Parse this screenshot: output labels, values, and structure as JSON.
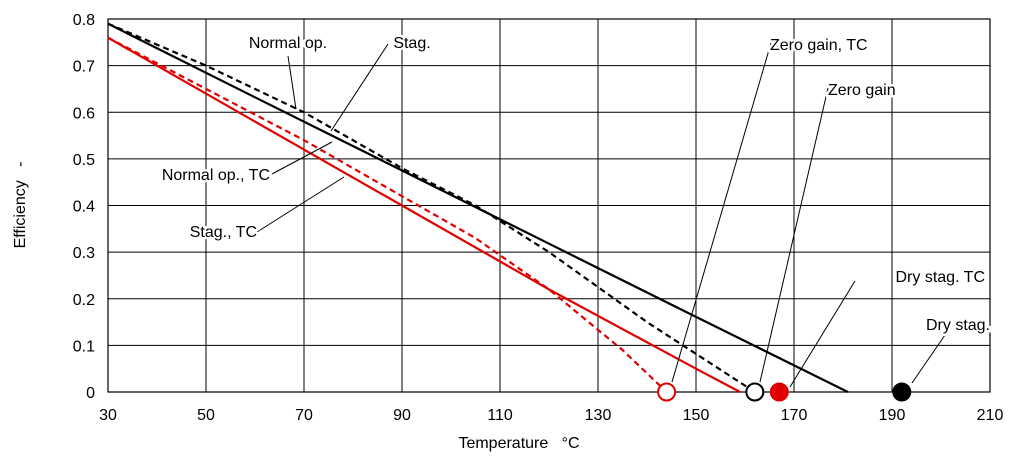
{
  "chart_data": {
    "type": "line",
    "title": "",
    "xlabel": "Temperature   °C",
    "ylabel": "Efficiency   -",
    "xlim": [
      30,
      210
    ],
    "ylim": [
      0,
      0.8
    ],
    "xticks": [
      30,
      50,
      70,
      90,
      110,
      130,
      150,
      170,
      190,
      210
    ],
    "yticks": [
      0,
      0.1,
      0.2,
      0.3,
      0.4,
      0.5,
      0.6,
      0.7,
      0.8
    ],
    "ytick_labels": [
      "0",
      "0.1",
      "0.2",
      "0.3",
      "0.4",
      "0.5",
      "0.6",
      "0.7",
      "0.8"
    ],
    "grid": true,
    "series": [
      {
        "name": "Normal op.",
        "color": "#000000",
        "dash": "solid",
        "x": [
          30,
          60,
          90,
          120,
          150,
          181
        ],
        "y": [
          0.79,
          0.632,
          0.475,
          0.318,
          0.161,
          0
        ]
      },
      {
        "name": "Stag.",
        "color": "#000000",
        "dash": "dashed",
        "x": [
          30,
          50,
          70,
          90,
          105,
          120,
          140,
          162
        ],
        "y": [
          0.79,
          0.7,
          0.6,
          0.48,
          0.4,
          0.3,
          0.15,
          0
        ]
      },
      {
        "name": "Normal op., TC",
        "color": "#e00000",
        "dash": "solid",
        "x": [
          30,
          60,
          90,
          120,
          150,
          159
        ],
        "y": [
          0.76,
          0.58,
          0.4,
          0.22,
          0.05,
          0
        ]
      },
      {
        "name": "Stag., TC",
        "color": "#e00000",
        "dash": "dashed",
        "x": [
          30,
          50,
          70,
          90,
          105,
          120,
          135,
          144
        ],
        "y": [
          0.76,
          0.65,
          0.54,
          0.42,
          0.33,
          0.22,
          0.09,
          0
        ]
      }
    ],
    "points": [
      {
        "name": "Zero gain, TC",
        "x": 144,
        "y": 0,
        "color": "#e00000",
        "filled": false
      },
      {
        "name": "Zero gain",
        "x": 162,
        "y": 0,
        "color": "#000000",
        "filled": false
      },
      {
        "name": "Dry stag. TC",
        "x": 167,
        "y": 0,
        "color": "#e00000",
        "filled": true
      },
      {
        "name": "Dry stag.",
        "x": 192,
        "y": 0,
        "color": "#000000",
        "filled": true
      }
    ],
    "annotations": [
      {
        "text": "Normal op.",
        "x": 69,
        "y": 0.604
      },
      {
        "text": "Stag.",
        "x": 72,
        "y": 0.555
      },
      {
        "text": "Normal op., TC",
        "x": 79,
        "y": 0.535
      },
      {
        "text": "Stag., TC",
        "x": 80,
        "y": 0.46
      },
      {
        "text": "Zero gain, TC",
        "x": 144,
        "y": 0
      },
      {
        "text": "Zero gain",
        "x": 162,
        "y": 0
      },
      {
        "text": "Dry stag. TC",
        "x": 167,
        "y": 0
      },
      {
        "text": "Dry stag.",
        "x": 192,
        "y": 0
      }
    ]
  }
}
